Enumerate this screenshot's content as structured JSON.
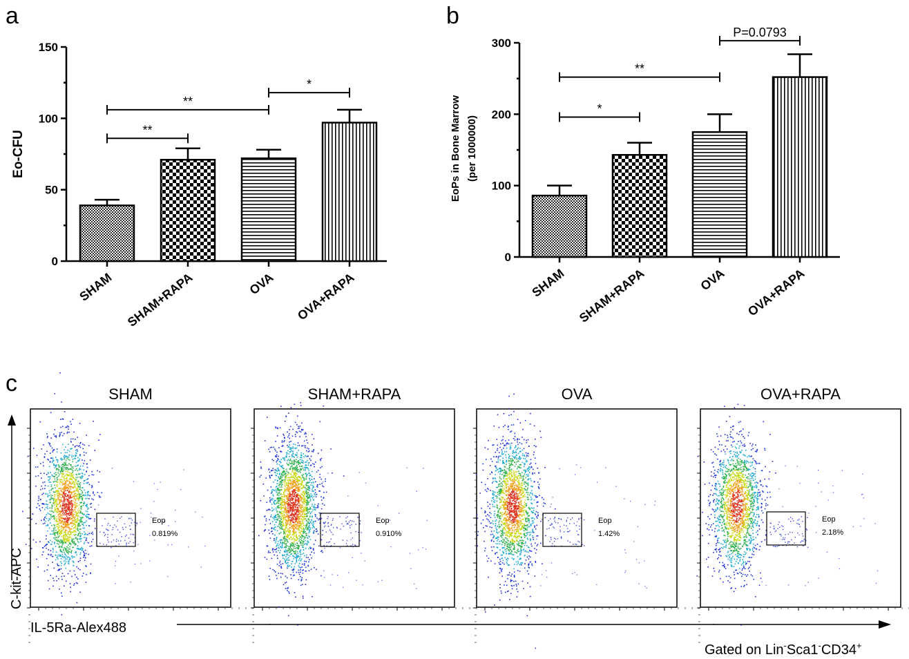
{
  "panel_a": {
    "letter": "a",
    "chart_data": {
      "type": "bar",
      "categories": [
        "SHAM",
        "SHAM+RAPA",
        "OVA",
        "OVA+RAPA"
      ],
      "values": [
        39,
        71,
        72,
        97
      ],
      "errors": [
        4,
        8,
        6,
        9
      ],
      "patterns": [
        "fine-check",
        "checker",
        "horizontal",
        "vertical"
      ],
      "ylabel": "Eo-CFU",
      "ylim": [
        0,
        150
      ],
      "yticks": [
        "0",
        "50",
        "100",
        "150"
      ],
      "ytick_values": [
        0,
        50,
        100,
        150
      ],
      "significance": [
        {
          "from": 0,
          "to": 1,
          "y": 86,
          "label": "**"
        },
        {
          "from": 0,
          "to": 2,
          "y": 106,
          "label": "**"
        },
        {
          "from": 2,
          "to": 3,
          "y": 118,
          "label": "*"
        }
      ]
    }
  },
  "panel_b": {
    "letter": "b",
    "chart_data": {
      "type": "bar",
      "categories": [
        "SHAM",
        "SHAM+RAPA",
        "OVA",
        "OVA+RAPA"
      ],
      "values": [
        86,
        143,
        175,
        252
      ],
      "errors": [
        14,
        17,
        25,
        32
      ],
      "patterns": [
        "fine-check",
        "checker",
        "horizontal",
        "vertical"
      ],
      "ylabel_line1": "EoPs in Bone Marrow",
      "ylabel_line2": "(per 1000000)",
      "ylim": [
        0,
        300
      ],
      "yticks": [
        "0",
        "100",
        "200",
        "300"
      ],
      "ytick_values": [
        0,
        100,
        200,
        300
      ],
      "significance": [
        {
          "from": 0,
          "to": 1,
          "y": 196,
          "label": "*"
        },
        {
          "from": 0,
          "to": 2,
          "y": 252,
          "label": "**"
        },
        {
          "from": 2,
          "to": 3,
          "y": 303,
          "label": "P=0.0793"
        }
      ]
    }
  },
  "panel_c": {
    "letter": "c",
    "plots": [
      {
        "title": "SHAM",
        "gate_name": "Eop",
        "gate_value": "0.819%",
        "density": 1.0
      },
      {
        "title": "SHAM+RAPA",
        "gate_name": "Eop",
        "gate_value": "0.910%",
        "density": 1.25
      },
      {
        "title": "OVA",
        "gate_name": "Eop",
        "gate_value": "1.42%",
        "density": 1.05
      },
      {
        "title": "OVA+RAPA",
        "gate_name": "Eop",
        "gate_value": "2.18%",
        "density": 1.0
      }
    ],
    "ylabel": "C-kit-APC",
    "xlabel": "IL-5Ra-Alex488",
    "gating_note": "Gated on Lin-Sca1-CD34+",
    "gating_parts": [
      "Gated on Lin",
      "-",
      "Sca1",
      "-",
      "CD34",
      "+"
    ]
  }
}
